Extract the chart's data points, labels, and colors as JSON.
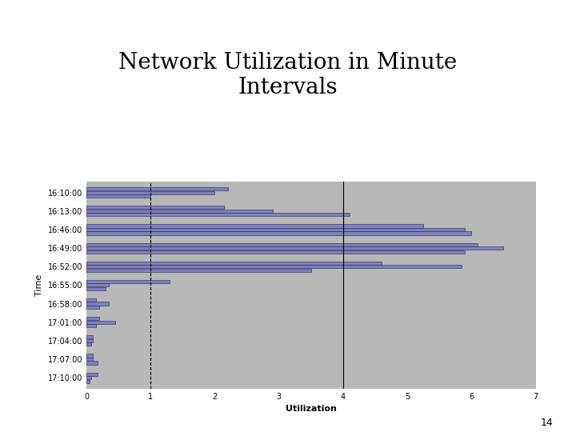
{
  "title": "Network Utilization in Minute\nIntervals",
  "xlabel": "Utilization",
  "ylabel": "Time",
  "time_labels": [
    "16:10:00",
    "16:13:00",
    "16:46:00",
    "16:49:00",
    "16:52:00",
    "16:55:00",
    "16:58:00",
    "17:01:00",
    "17:04:00",
    "17:07:00",
    "17:10:00"
  ],
  "bar_data": [
    [
      2.2,
      2.0,
      1.0
    ],
    [
      2.15,
      2.9,
      4.1
    ],
    [
      5.25,
      5.9,
      6.0
    ],
    [
      6.1,
      6.5,
      5.9
    ],
    [
      4.6,
      5.85,
      3.5
    ],
    [
      1.3,
      0.35,
      0.3
    ],
    [
      0.15,
      0.35,
      0.2
    ],
    [
      0.2,
      0.45,
      0.15
    ],
    [
      0.1,
      0.1,
      0.08
    ],
    [
      0.1,
      0.1,
      0.18
    ],
    [
      0.18,
      0.07,
      0.05
    ]
  ],
  "bar_color": "#8080bb",
  "bar_edge_color": "#222255",
  "background_color": "#b8b8b8",
  "xlim": [
    0,
    7
  ],
  "xticks": [
    0,
    1,
    2,
    3,
    4,
    5,
    6,
    7
  ],
  "vlines": [
    1.0,
    4.0
  ],
  "vline_styles": [
    "--",
    "-"
  ],
  "title_fontsize": 20,
  "axis_label_fontsize": 8,
  "tick_fontsize": 7,
  "page_number": "14"
}
